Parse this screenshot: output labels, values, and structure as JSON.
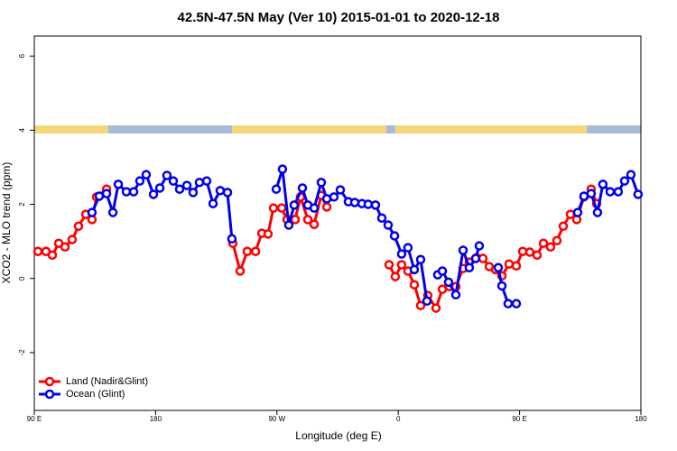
{
  "chart_data": {
    "type": "line",
    "title": "42.5N-47.5N May (Ver 10)   2015-01-01 to 2020-12-18",
    "x_label": "Longitude (deg E)",
    "y_label": "XCO2 - MLO trend (ppm)",
    "xlim": [
      90,
      540
    ],
    "ylim": [
      -3.56,
      6.54
    ],
    "xticks": [
      {
        "value": 90,
        "label": "90 E"
      },
      180,
      {
        "value": 270,
        "label": "90 W"
      },
      {
        "value": 360,
        "label": "0"
      },
      {
        "value": 450,
        "label": "90 E"
      },
      {
        "value": 540,
        "label": "180"
      }
    ],
    "yticks": [
      -2,
      0,
      2,
      4,
      6
    ],
    "legend": "bottom-left",
    "series": [
      {
        "name": "Land (Nadir&Glint)",
        "color": "#ff0000",
        "x": [
          92.7,
          98.7,
          103.4,
          108.1,
          112.8,
          118.1,
          122.8,
          128.2,
          132.8,
          136.2,
          143.6,
          null,
          237.3,
          242.7,
          248.0,
          254.1,
          258.8,
          263.4,
          267.4,
          273.5,
          277.5,
          283.5,
          287.5,
          292.9,
          297.6,
          302.9,
          307.0,
          null,
          353.2,
          357.8,
          362.5,
          367.2,
          371.9,
          376.6,
          381.9,
          388.0,
          392.7,
          398.0,
          402.7,
          408.1,
          412.7,
          418.1,
          422.8,
          427.5,
          432.2,
          436.9,
          442.2,
          447.6,
          452.3,
          457.6,
          463.0,
          467.7,
          473.0,
          477.7,
          482.4,
          487.7,
          492.4,
          497.8,
          503.1,
          507.2
        ],
        "values": [
          0.73,
          0.73,
          0.63,
          0.95,
          0.85,
          1.05,
          1.41,
          1.73,
          1.59,
          2.2,
          2.41,
          null,
          0.95,
          0.2,
          0.73,
          0.73,
          1.22,
          1.2,
          1.9,
          1.9,
          1.59,
          1.59,
          2.2,
          1.59,
          1.46,
          2.24,
          1.93,
          null,
          0.37,
          0.05,
          0.37,
          0.2,
          -0.17,
          -0.73,
          -0.46,
          -0.8,
          -0.29,
          -0.22,
          -0.22,
          0.27,
          0.44,
          0.56,
          0.54,
          0.32,
          0.24,
          0.07,
          0.39,
          0.34,
          0.73,
          0.71,
          0.63,
          0.95,
          0.85,
          1.02,
          1.41,
          1.73,
          1.59,
          2.2,
          2.41,
          2.02
        ]
      },
      {
        "name": "Ocean (Glint)",
        "color": "#0000ee",
        "x": [
          132.8,
          138.2,
          143.6,
          148.3,
          152.3,
          158.3,
          163.7,
          168.3,
          173.0,
          178.4,
          183.1,
          188.4,
          193.1,
          197.8,
          203.2,
          207.8,
          212.5,
          217.9,
          222.6,
          227.9,
          233.3,
          236.6,
          null,
          269.5,
          274.1,
          278.8,
          282.8,
          288.9,
          292.9,
          297.6,
          302.9,
          307.0,
          312.3,
          317.0,
          323.0,
          327.7,
          333.1,
          337.7,
          343.1,
          347.8,
          352.5,
          357.2,
          362.5,
          367.2,
          371.9,
          376.6,
          381.3,
          null,
          389.3,
          392.7,
          397.3,
          402.7,
          408.1,
          412.7,
          417.4,
          420.1,
          null,
          434.2,
          436.9,
          441.5,
          447.6,
          null,
          493.1,
          497.8,
          503.1,
          507.8,
          511.8,
          517.2,
          523.2,
          527.9,
          532.6,
          537.9
        ],
        "values": [
          1.78,
          2.22,
          2.29,
          1.78,
          2.54,
          2.34,
          2.34,
          2.63,
          2.8,
          2.27,
          2.44,
          2.78,
          2.63,
          2.41,
          2.51,
          2.32,
          2.59,
          2.63,
          2.02,
          2.37,
          2.32,
          1.07,
          null,
          2.41,
          2.95,
          1.44,
          1.98,
          2.44,
          1.98,
          1.9,
          2.59,
          2.15,
          2.2,
          2.39,
          2.07,
          2.05,
          2.02,
          2.0,
          1.98,
          1.63,
          1.44,
          1.15,
          0.66,
          0.83,
          0.24,
          0.51,
          -0.61,
          null,
          0.1,
          0.2,
          -0.1,
          -0.44,
          0.76,
          0.29,
          0.54,
          0.88,
          null,
          0.29,
          -0.2,
          -0.68,
          -0.68,
          null,
          1.78,
          2.22,
          2.29,
          1.78,
          2.54,
          2.34,
          2.34,
          2.63,
          2.8,
          2.27
        ]
      }
    ]
  }
}
